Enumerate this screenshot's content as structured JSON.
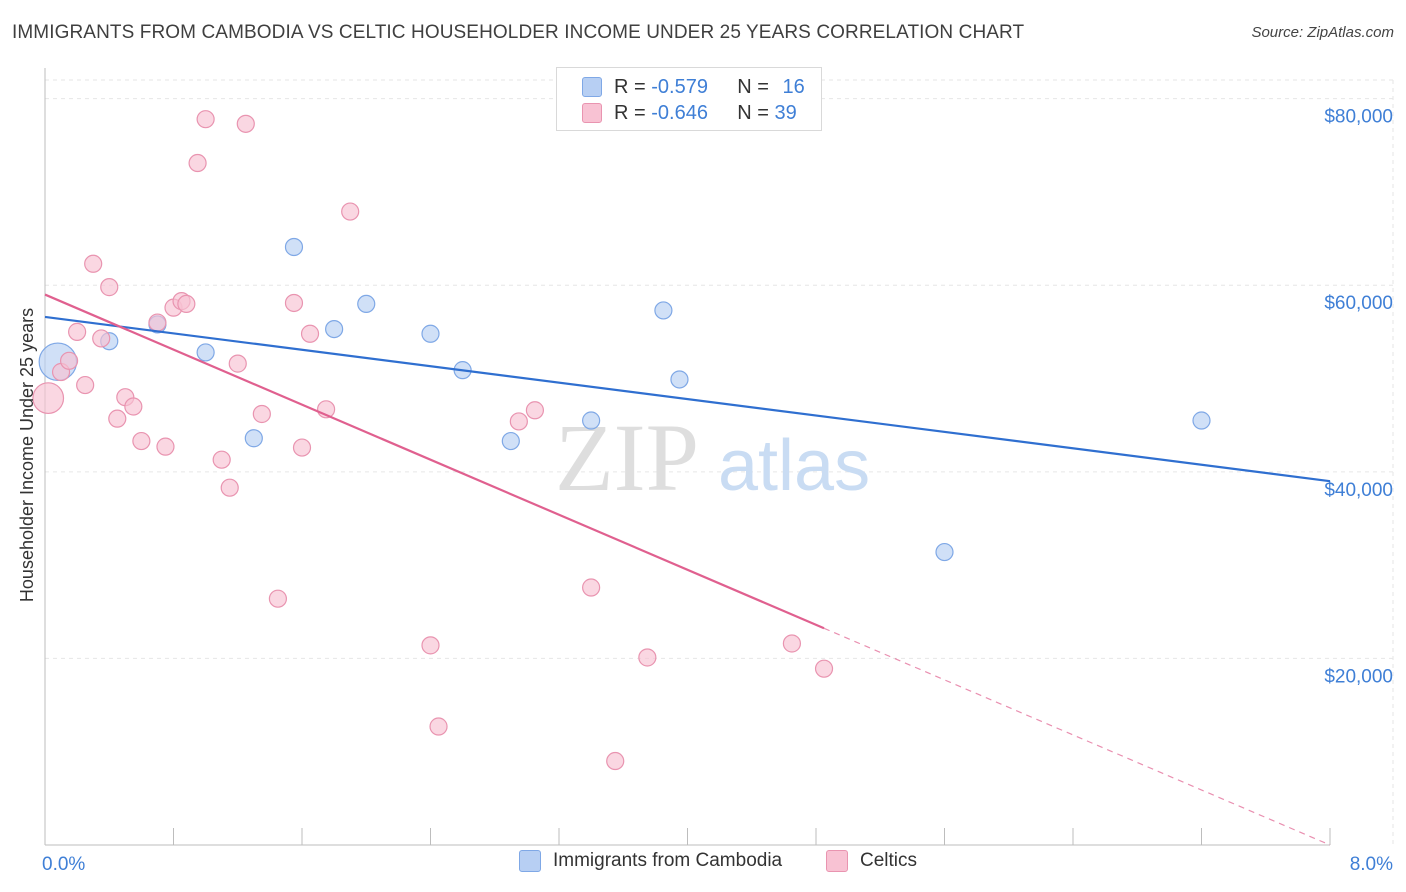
{
  "title": "IMMIGRANTS FROM CAMBODIA VS CELTIC HOUSEHOLDER INCOME UNDER 25 YEARS CORRELATION CHART",
  "source": "Source: ZipAtlas.com",
  "watermark": {
    "zip": "ZIP",
    "atlas": "atlas"
  },
  "colors": {
    "blue_fill": "#b7cff3",
    "blue_stroke": "#7fa8e6",
    "blue_line": "#2f6fd0",
    "pink_fill": "#f8c2d3",
    "pink_stroke": "#e994b0",
    "pink_line": "#e0608f",
    "axis_text": "#3f7fd6",
    "grid": "#e6e6e6"
  },
  "legend": {
    "r_label": "R =",
    "n_label": "N =",
    "series": [
      {
        "r": "-0.579",
        "n": "16"
      },
      {
        "r": "-0.646",
        "n": "39"
      }
    ]
  },
  "chart_data": {
    "type": "scatter",
    "title": "IMMIGRANTS FROM CAMBODIA VS CELTIC HOUSEHOLDER INCOME UNDER 25 YEARS CORRELATION CHART",
    "xlabel": "",
    "ylabel": "Householder Income Under 25 years",
    "xlim": [
      0,
      8
    ],
    "ylim": [
      0,
      82000
    ],
    "x_tick_labels": [
      {
        "value": 0,
        "label": "0.0%"
      },
      {
        "value": 8,
        "label": "8.0%"
      }
    ],
    "y_ticks": [
      {
        "value": 20000,
        "label": "$20,000"
      },
      {
        "value": 40000,
        "label": "$40,000"
      },
      {
        "value": 60000,
        "label": "$60,000"
      },
      {
        "value": 80000,
        "label": "$80,000"
      }
    ],
    "grid": true,
    "legend_position": "top-center",
    "series": [
      {
        "name": "Immigrants from Cambodia",
        "color": "#7fa8e6",
        "points": [
          [
            0.08,
            51800,
            2.2
          ],
          [
            0.4,
            54000,
            1
          ],
          [
            0.7,
            55800,
            1
          ],
          [
            1.0,
            52800,
            1
          ],
          [
            1.3,
            43600,
            1
          ],
          [
            1.55,
            64100,
            1
          ],
          [
            1.8,
            55300,
            1
          ],
          [
            2.0,
            58000,
            1
          ],
          [
            2.4,
            54800,
            1
          ],
          [
            2.6,
            50900,
            1
          ],
          [
            2.9,
            43300,
            1
          ],
          [
            3.4,
            45500,
            1
          ],
          [
            3.85,
            57300,
            1
          ],
          [
            3.95,
            49900,
            1
          ],
          [
            5.6,
            31400,
            1
          ],
          [
            7.2,
            45500,
            1
          ]
        ],
        "trend": {
          "x0": 0,
          "y0": 56600,
          "x1": 8,
          "y1": 39000,
          "dashed_until": 8
        }
      },
      {
        "name": "Celtics",
        "color": "#e994b0",
        "points": [
          [
            0.02,
            47900,
            1.8
          ],
          [
            0.1,
            50700,
            1
          ],
          [
            0.15,
            51900,
            1
          ],
          [
            0.2,
            55000,
            1
          ],
          [
            0.25,
            49300,
            1
          ],
          [
            0.3,
            62300,
            1
          ],
          [
            0.35,
            54300,
            1
          ],
          [
            0.4,
            59800,
            1
          ],
          [
            0.45,
            45700,
            1
          ],
          [
            0.5,
            48000,
            1
          ],
          [
            0.55,
            47000,
            1
          ],
          [
            0.6,
            43300,
            1
          ],
          [
            0.7,
            56000,
            1
          ],
          [
            0.75,
            42700,
            1
          ],
          [
            0.8,
            57600,
            1
          ],
          [
            0.85,
            58300,
            1
          ],
          [
            0.88,
            58000,
            1
          ],
          [
            0.95,
            73100,
            1
          ],
          [
            1.0,
            77800,
            1
          ],
          [
            1.1,
            41300,
            1
          ],
          [
            1.15,
            38300,
            1
          ],
          [
            1.2,
            51600,
            1
          ],
          [
            1.25,
            77300,
            1
          ],
          [
            1.35,
            46200,
            1
          ],
          [
            1.45,
            26400,
            1
          ],
          [
            1.55,
            58100,
            1
          ],
          [
            1.6,
            42600,
            1
          ],
          [
            1.65,
            54800,
            1
          ],
          [
            1.75,
            46700,
            1
          ],
          [
            1.9,
            67900,
            1
          ],
          [
            2.4,
            21400,
            1
          ],
          [
            2.45,
            12700,
            1
          ],
          [
            2.95,
            45400,
            1
          ],
          [
            3.05,
            46600,
            1
          ],
          [
            3.4,
            27600,
            1
          ],
          [
            3.55,
            9000,
            1
          ],
          [
            3.75,
            20100,
            1
          ],
          [
            4.65,
            21600,
            1
          ],
          [
            4.85,
            18900,
            1
          ]
        ],
        "trend": {
          "x0": 0,
          "y0": 59000,
          "x1": 8,
          "y1": 0,
          "solid_until": 4.85
        }
      }
    ]
  }
}
